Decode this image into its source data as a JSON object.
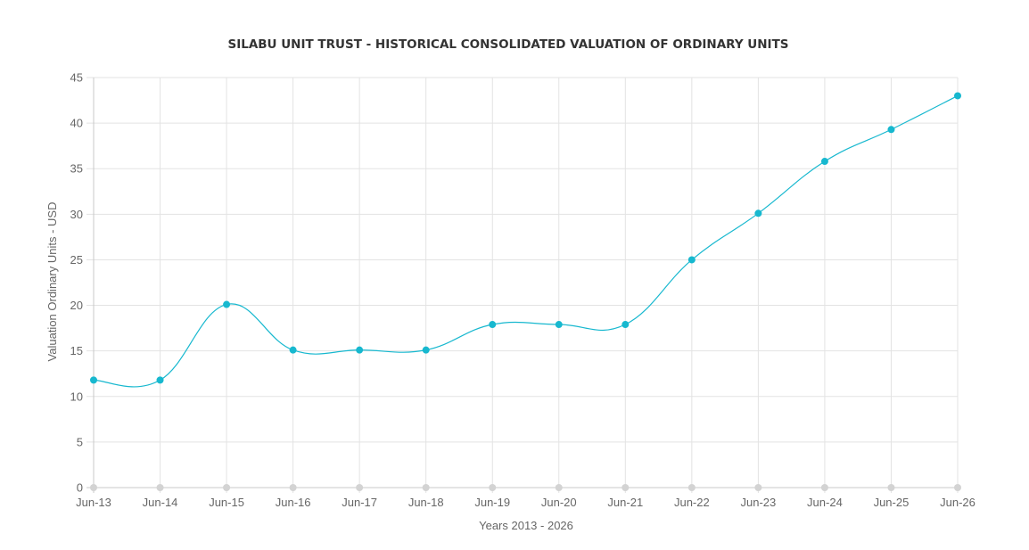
{
  "chart_data": {
    "type": "line",
    "title": "SILABU UNIT TRUST - HISTORICAL CONSOLIDATED VALUATION OF ORDINARY UNITS",
    "xlabel": "Years 2013 - 2026",
    "ylabel": "Valuation Ordinary Units - USD",
    "categories": [
      "Jun-13",
      "Jun-14",
      "Jun-15",
      "Jun-16",
      "Jun-17",
      "Jun-18",
      "Jun-19",
      "Jun-20",
      "Jun-21",
      "Jun-22",
      "Jun-23",
      "Jun-24",
      "Jun-25",
      "Jun-26"
    ],
    "series": [
      {
        "values": [
          0,
          0,
          0,
          0,
          0,
          0,
          0,
          0,
          0,
          0,
          0,
          0,
          0,
          0
        ],
        "color": "#d3d3d3"
      },
      {
        "values": [
          11.8,
          11.8,
          20.1,
          15.1,
          15.1,
          15.1,
          17.9,
          17.9,
          17.9,
          25,
          30.1,
          35.8,
          39.3,
          43
        ],
        "color": "#17b8cf"
      }
    ],
    "ylim": [
      0,
      45
    ],
    "yticks": [
      0,
      5,
      10,
      15,
      20,
      25,
      30,
      35,
      40,
      45
    ],
    "grid": true,
    "legend": "none"
  }
}
